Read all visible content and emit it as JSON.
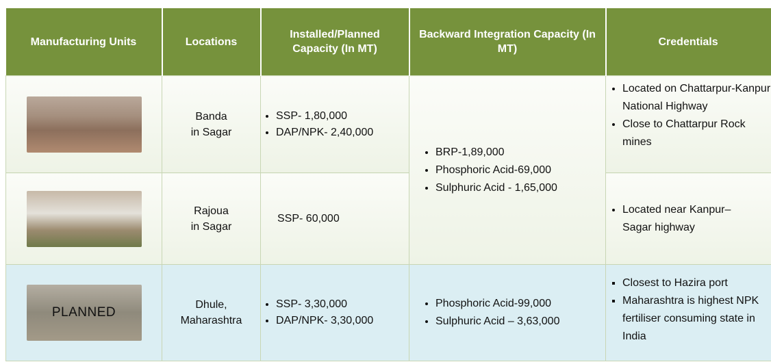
{
  "table": {
    "columns": [
      "Manufacturing Units",
      "Locations",
      "Installed/Planned Capacity (In MT)",
      "Backward Integration Capacity (In MT)",
      "Credentials"
    ],
    "rows": [
      {
        "location": [
          "Banda",
          "in Sagar"
        ],
        "capacity": [
          "SSP- 1,80,000",
          "DAP/NPK-  2,40,000"
        ],
        "credentials": [
          "Located on Chattarpur-Kanpur National Highway",
          "Close to Chattarpur Rock mines"
        ]
      },
      {
        "location": [
          "Rajoua",
          "in Sagar"
        ],
        "capacity": [
          "SSP- 60,000"
        ],
        "credentials": [
          "Located near Kanpur–Sagar highway"
        ]
      },
      {
        "image_label": "PLANNED",
        "location": [
          "Dhule,",
          "Maharashtra"
        ],
        "capacity": [
          "SSP-  3,30,000",
          "DAP/NPK- 3,30,000"
        ],
        "credentials": [
          "Closest to Hazira port",
          "Maharashtra is highest NPK fertiliser consuming state in India"
        ]
      }
    ],
    "backward_integration": [
      [
        "BRP-1,89,000",
        "Phosphoric Acid-69,000",
        "Sulphuric Acid - 1,65,000"
      ],
      [
        "Phosphoric Acid-99,000",
        "Sulphuric Acid – 3,63,000"
      ]
    ]
  }
}
